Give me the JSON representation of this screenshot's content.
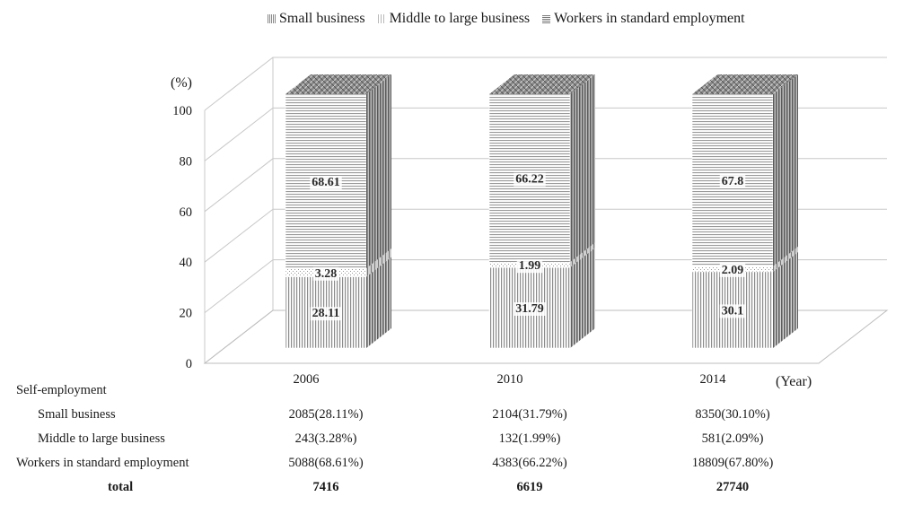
{
  "chart_data": {
    "type": "bar",
    "stacked": true,
    "three_d": true,
    "categories": [
      "2006",
      "2010",
      "2014"
    ],
    "series": [
      {
        "name": "Small business",
        "values": [
          28.11,
          31.79,
          30.1
        ],
        "labels": [
          "28.11",
          "31.79",
          "30.1"
        ]
      },
      {
        "name": "Middle to large business",
        "values": [
          3.28,
          1.99,
          2.09
        ],
        "labels": [
          "3.28",
          "1.99",
          "2.09"
        ]
      },
      {
        "name": "Workers in standard employment",
        "values": [
          68.61,
          66.22,
          67.8
        ],
        "labels": [
          "68.61",
          "66.22",
          "67.8"
        ]
      }
    ],
    "ylabel": "(%)",
    "xlabel": "(Year)",
    "ylim": [
      0,
      100
    ],
    "yticks": [
      "0",
      "20",
      "40",
      "60",
      "80",
      "100"
    ],
    "ytick_values": [
      0,
      20,
      40,
      60,
      80,
      100
    ],
    "grid": true,
    "legend_position": "top"
  },
  "table": {
    "heading": "Self-employment",
    "rows": [
      {
        "label": "Small business",
        "values": [
          "2085(28.11%)",
          "2104(31.79%)",
          "8350(30.10%)"
        ]
      },
      {
        "label": "Middle to large business",
        "values": [
          "243(3.28%)",
          "132(1.99%)",
          "581(2.09%)"
        ]
      },
      {
        "label": "Workers in standard employment",
        "values": [
          "5088(68.61%)",
          "4383(66.22%)",
          "18809(67.80%)"
        ]
      },
      {
        "label": "total",
        "values": [
          "7416",
          "6619",
          "27740"
        ]
      }
    ]
  }
}
